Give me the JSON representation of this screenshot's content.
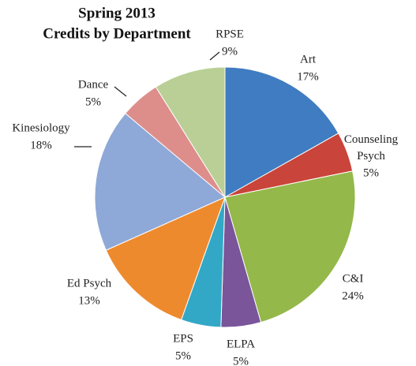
{
  "chart_data": {
    "type": "pie",
    "title": "Spring 2013",
    "subtitle": "Credits by Department",
    "categories": [
      "Art",
      "Counseling Psych",
      "C&I",
      "ELPA",
      "EPS",
      "Ed Psych",
      "Kinesiology",
      "Dance",
      "RPSE"
    ],
    "values": [
      17,
      5,
      24,
      5,
      5,
      13,
      18,
      5,
      9
    ],
    "value_labels": [
      "17%",
      "5%",
      "24%",
      "5%",
      "5%",
      "13%",
      "18%",
      "5%",
      "9%"
    ],
    "colors": [
      "#3f7cc1",
      "#c9443a",
      "#94b84a",
      "#7a559a",
      "#33a8c6",
      "#ee8a2e",
      "#8ea8d8",
      "#dd8e8b",
      "#b9cf96"
    ]
  }
}
